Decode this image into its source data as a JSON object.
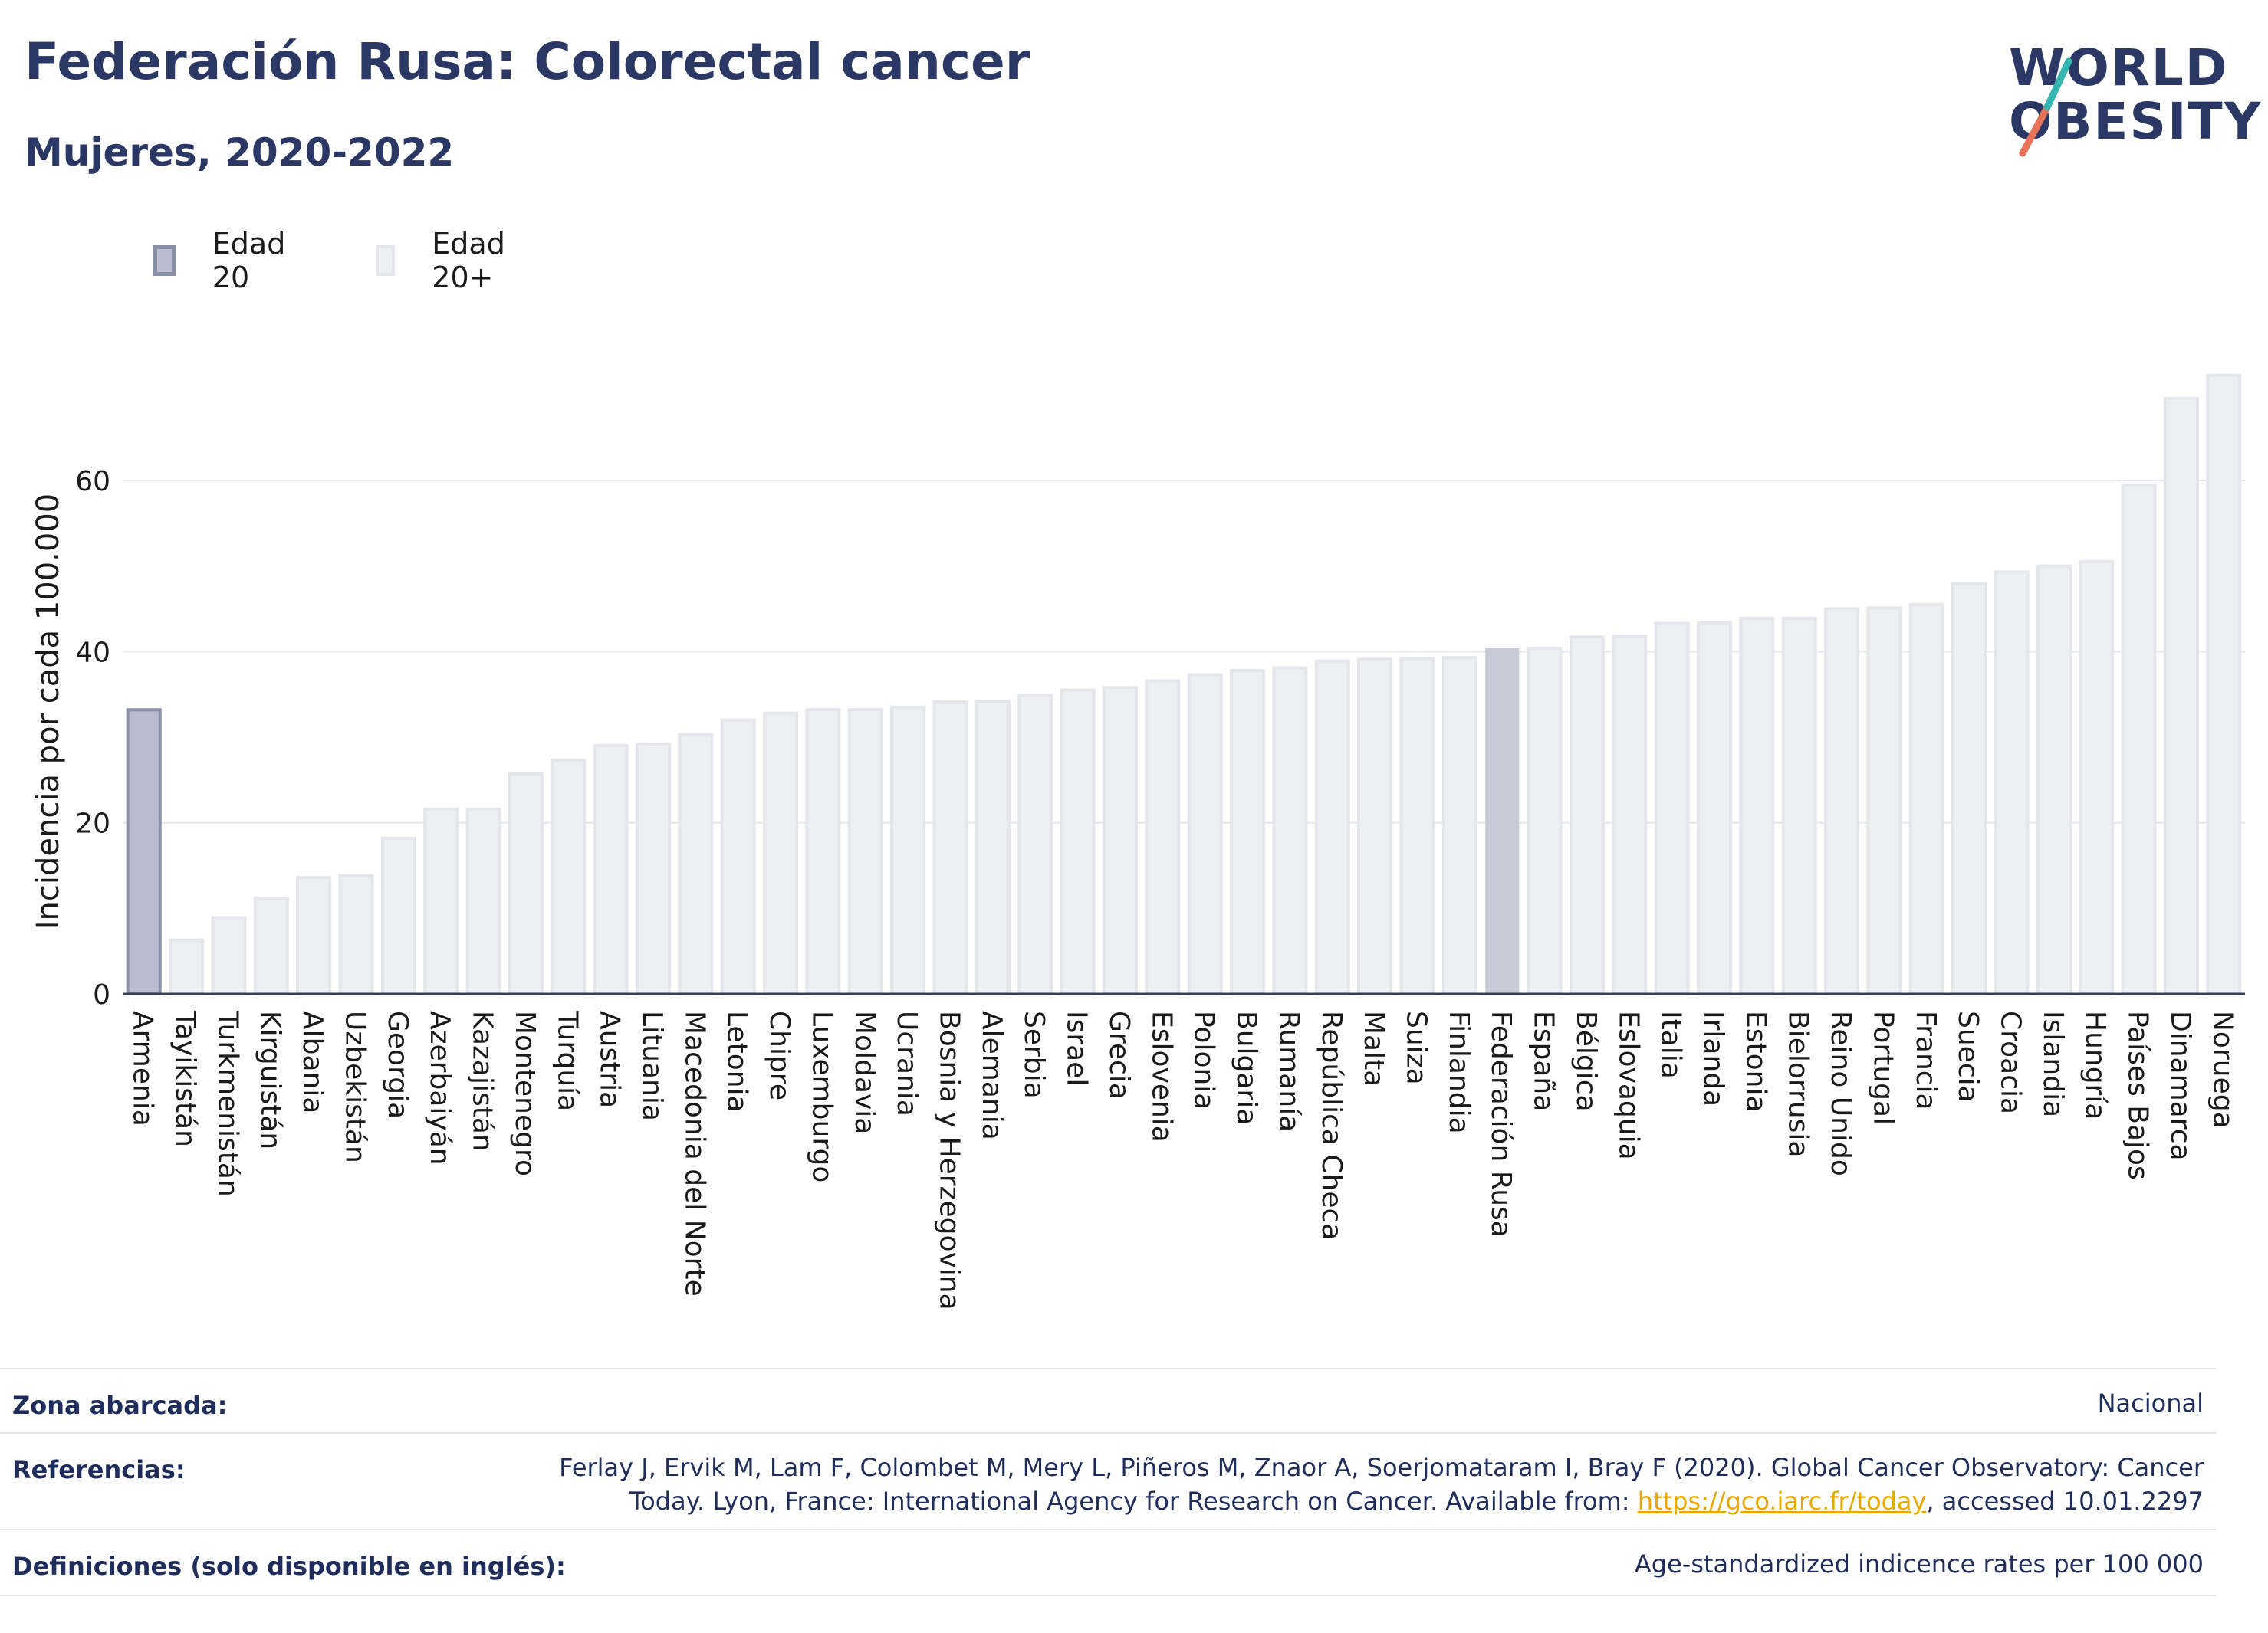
{
  "header": {
    "title": "Federación Rusa: Colorectal cancer",
    "subtitle": "Mujeres, 2020-2022"
  },
  "logo": {
    "line1": "WORLD",
    "line2": "OBESITY"
  },
  "legend": [
    {
      "label": "Edad 20",
      "color": "#b9bdcf",
      "border": "#8a8fa8"
    },
    {
      "label": "Edad 20+",
      "color": "#eeeff3",
      "border": "#e4e6ec"
    }
  ],
  "chart_data": {
    "type": "bar",
    "ylabel": "Incidencia por cada 100.000",
    "ylim": [
      0,
      75
    ],
    "yticks": [
      0,
      20,
      40,
      60
    ],
    "grid": true,
    "highlight_colors": {
      "Armenia": "#b9bdcf",
      "Federación Rusa": "#c8cad6",
      "default": "#eeeff3"
    },
    "categories": [
      "Armenia",
      "Tayikistán",
      "Turkmenistán",
      "Kirguistán",
      "Albania",
      "Uzbekistán",
      "Georgia",
      "Azerbaiyán",
      "Kazajistán",
      "Montenegro",
      "Turquía",
      "Austria",
      "Lituania",
      "Macedonia del Norte",
      "Letonia",
      "Chipre",
      "Luxemburgo",
      "Moldavia",
      "Ucrania",
      "Bosnia y Herzegovina",
      "Alemania",
      "Serbia",
      "Israel",
      "Grecia",
      "Eslovenia",
      "Polonia",
      "Bulgaria",
      "Rumanía",
      "República Checa",
      "Malta",
      "Suiza",
      "Finlandia",
      "Federación Rusa",
      "España",
      "Bélgica",
      "Eslovaquia",
      "Italia",
      "Irlanda",
      "Estonia",
      "Bielorrusia",
      "Reino Unido",
      "Portugal",
      "Francia",
      "Suecia",
      "Croacia",
      "Islandia",
      "Hungría",
      "Países Bajos",
      "Dinamarca",
      "Noruega"
    ],
    "series": [
      {
        "values": [
          33.2,
          6.3,
          8.9,
          11.2,
          13.6,
          13.8,
          18.2,
          21.6,
          21.6,
          25.7,
          27.3,
          29.0,
          29.1,
          30.3,
          32.0,
          32.8,
          33.2,
          33.2,
          33.5,
          34.1,
          34.2,
          34.9,
          35.5,
          35.8,
          36.6,
          37.3,
          37.8,
          38.1,
          38.9,
          39.1,
          39.2,
          39.3,
          40.3,
          40.4,
          41.7,
          41.8,
          43.3,
          43.4,
          43.9,
          43.9,
          45.0,
          45.1,
          45.5,
          47.9,
          49.3,
          50.0,
          50.5,
          59.5,
          69.6,
          72.3
        ]
      }
    ]
  },
  "info": {
    "rows": [
      {
        "key": "Zona abarcada:",
        "value": "Nacional"
      },
      {
        "key": "Referencias:",
        "value_line1": "Ferlay J, Ervik M, Lam F, Colombet M, Mery L, Piñeros M, Znaor A, Soerjomataram I, Bray F (2020). Global Cancer Observatory: Cancer",
        "value_line2_pre": "Today. Lyon, France: International Agency for Research on Cancer. Available from: ",
        "link": "https://gco.iarc.fr/today",
        "value_line2_post": ", accessed 10.01.2297"
      },
      {
        "key": "Definiciones (solo disponible en inglés):",
        "value": "Age-standardized indicence rates per 100 000"
      }
    ]
  }
}
